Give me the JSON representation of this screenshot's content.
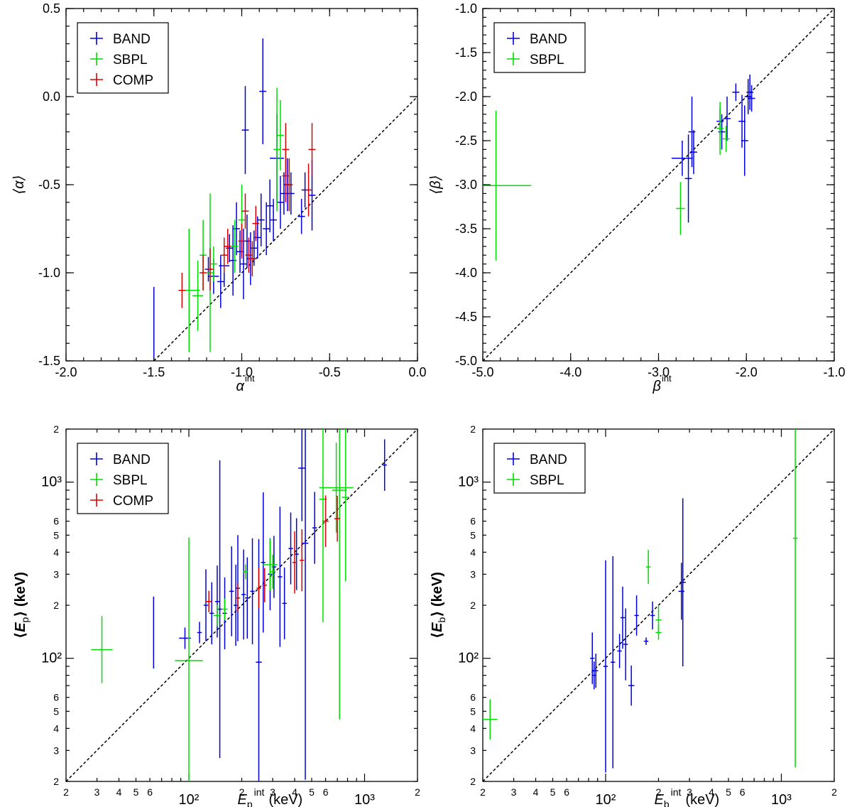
{
  "chart_data": [
    {
      "type": "scatter",
      "id": "alpha",
      "scale": "linear",
      "xlim": [
        -2.0,
        0.0
      ],
      "ylim": [
        -1.5,
        0.5
      ],
      "xticks": [
        -2.0,
        -1.5,
        -1.0,
        -0.5,
        0.0
      ],
      "xtick_labels": [
        "-2.0",
        "-1.5",
        "-1.0",
        "-0.5",
        "0.0"
      ],
      "yticks": [
        -1.5,
        -1.0,
        -0.5,
        0.0,
        0.5
      ],
      "ytick_labels": [
        "-1.5",
        "-1.0",
        "-0.5",
        "0.0",
        "0.5"
      ],
      "xlabel": {
        "sym": "α",
        "sup": "int"
      },
      "ylabel": "⟨α⟩",
      "diagonal": true,
      "legend": [
        "BAND",
        "SBPL",
        "COMP"
      ],
      "colors": {
        "BAND": "#0000dd",
        "SBPL": "#00dd00",
        "COMP": "#dd0000",
        "diagonal": "#000000"
      },
      "series": [
        {
          "name": "BAND",
          "points": [
            [
              -1.5,
              -1.28,
              0.0,
              0.2
            ],
            [
              -1.19,
              -0.98,
              0.02,
              0.07
            ],
            [
              -1.16,
              -1.02,
              0.03,
              0.1
            ],
            [
              -1.12,
              -1.05,
              0.02,
              0.15
            ],
            [
              -1.1,
              -0.96,
              0.03,
              0.12
            ],
            [
              -1.07,
              -0.86,
              0.02,
              0.08
            ],
            [
              -1.05,
              -0.93,
              0.02,
              0.2
            ],
            [
              -1.03,
              -0.75,
              0.02,
              0.15
            ],
            [
              -1.01,
              -0.88,
              0.02,
              0.12
            ],
            [
              -0.99,
              -0.95,
              0.02,
              0.2
            ],
            [
              -0.98,
              -0.19,
              0.02,
              0.25
            ],
            [
              -0.97,
              -0.82,
              0.02,
              0.15
            ],
            [
              -0.95,
              -0.92,
              0.02,
              0.15
            ],
            [
              -0.93,
              -0.86,
              0.02,
              0.1
            ],
            [
              -0.91,
              -0.8,
              0.02,
              0.12
            ],
            [
              -0.89,
              -0.7,
              0.02,
              0.15
            ],
            [
              -0.88,
              0.03,
              0.02,
              0.3
            ],
            [
              -0.86,
              -0.75,
              0.02,
              0.15
            ],
            [
              -0.84,
              -0.62,
              0.02,
              0.15
            ],
            [
              -0.82,
              -0.7,
              0.02,
              0.12
            ],
            [
              -0.8,
              -0.35,
              0.04,
              0.25
            ],
            [
              -0.78,
              -0.6,
              0.02,
              0.15
            ],
            [
              -0.76,
              -0.55,
              0.02,
              0.12
            ],
            [
              -0.74,
              -0.5,
              0.02,
              0.15
            ],
            [
              -0.72,
              -0.55,
              0.02,
              0.12
            ],
            [
              -0.66,
              -0.68,
              0.02,
              0.1
            ],
            [
              -0.64,
              -0.53,
              0.02,
              0.1
            ],
            [
              -0.6,
              -0.56,
              0.02,
              0.2
            ]
          ]
        },
        {
          "name": "SBPL",
          "points": [
            [
              -1.3,
              -1.1,
              0.06,
              0.35
            ],
            [
              -1.25,
              -1.13,
              0.03,
              0.2
            ],
            [
              -1.22,
              -0.9,
              0.02,
              0.2
            ],
            [
              -1.18,
              -1.0,
              0.02,
              0.45
            ],
            [
              -1.16,
              -0.95,
              0.02,
              0.1
            ],
            [
              -1.04,
              -0.85,
              0.02,
              0.15
            ],
            [
              -1.0,
              -0.7,
              0.02,
              0.2
            ],
            [
              -0.8,
              -0.3,
              0.02,
              0.35
            ],
            [
              -0.78,
              -0.22,
              0.02,
              0.2
            ]
          ]
        },
        {
          "name": "COMP",
          "points": [
            [
              -1.34,
              -1.1,
              0.02,
              0.1
            ],
            [
              -1.22,
              -1.0,
              0.02,
              0.1
            ],
            [
              -1.18,
              -0.98,
              0.02,
              0.12
            ],
            [
              -1.1,
              -0.9,
              0.02,
              0.1
            ],
            [
              -1.08,
              -0.85,
              0.02,
              0.1
            ],
            [
              -1.0,
              -0.82,
              0.02,
              0.1
            ],
            [
              -0.98,
              -0.65,
              0.02,
              0.1
            ],
            [
              -0.96,
              -0.9,
              0.02,
              0.1
            ],
            [
              -0.94,
              -0.92,
              0.02,
              0.1
            ],
            [
              -0.92,
              -0.72,
              0.02,
              0.1
            ],
            [
              -0.75,
              -0.45,
              0.02,
              0.15
            ],
            [
              -0.75,
              -0.3,
              0.02,
              0.15
            ],
            [
              -0.73,
              -0.5,
              0.02,
              0.15
            ],
            [
              -0.62,
              -0.53,
              0.02,
              0.15
            ],
            [
              -0.6,
              -0.3,
              0.02,
              0.15
            ]
          ]
        }
      ]
    },
    {
      "type": "scatter",
      "id": "beta",
      "scale": "linear",
      "xlim": [
        -5.0,
        -1.0
      ],
      "ylim": [
        -5.0,
        -1.0
      ],
      "xticks": [
        -5.0,
        -4.0,
        -3.0,
        -2.0,
        -1.0
      ],
      "xtick_labels": [
        "-5.0",
        "-4.0",
        "-3.0",
        "-2.0",
        "-1.0"
      ],
      "yticks": [
        -5.0,
        -4.5,
        -4.0,
        -3.5,
        -3.0,
        -2.5,
        -2.0,
        -1.5,
        -1.0
      ],
      "ytick_labels": [
        "-5.0",
        "-4.5",
        "-4.0",
        "-3.5",
        "-3.0",
        "-2.5",
        "-2.0",
        "-1.5",
        "-1.0"
      ],
      "xlabel": {
        "sym": "β",
        "sup": "int"
      },
      "ylabel": "⟨β⟩",
      "diagonal": true,
      "legend": [
        "BAND",
        "SBPL"
      ],
      "colors": {
        "BAND": "#0000dd",
        "SBPL": "#00dd00",
        "diagonal": "#000000"
      },
      "series": [
        {
          "name": "BAND",
          "points": [
            [
              -2.73,
              -2.7,
              0.12,
              0.2
            ],
            [
              -2.66,
              -2.93,
              0.04,
              0.5
            ],
            [
              -2.62,
              -2.4,
              0.04,
              0.4
            ],
            [
              -2.6,
              -2.63,
              0.04,
              0.25
            ],
            [
              -2.3,
              -2.28,
              0.04,
              0.15
            ],
            [
              -2.28,
              -2.4,
              0.04,
              0.2
            ],
            [
              -2.22,
              -2.25,
              0.04,
              0.25
            ],
            [
              -2.12,
              -1.95,
              0.04,
              0.1
            ],
            [
              -2.05,
              -2.28,
              0.04,
              0.3
            ],
            [
              -2.02,
              -2.5,
              0.04,
              0.4
            ],
            [
              -1.98,
              -2.0,
              0.04,
              0.2
            ],
            [
              -1.96,
              -1.95,
              0.04,
              0.2
            ],
            [
              -1.94,
              -2.02,
              0.04,
              0.15
            ]
          ]
        },
        {
          "name": "SBPL",
          "points": [
            [
              -4.85,
              -3.01,
              0.4,
              0.85
            ],
            [
              -2.75,
              -3.27,
              0.05,
              0.3
            ],
            [
              -2.3,
              -2.36,
              0.04,
              0.3
            ],
            [
              -2.23,
              -2.48,
              0.04,
              0.15
            ]
          ]
        }
      ]
    },
    {
      "type": "scatter",
      "id": "epeak",
      "scale": "log",
      "xlim": [
        20,
        2000
      ],
      "ylim": [
        20,
        2000
      ],
      "major_ticks": [
        100,
        1000
      ],
      "major_tick_labels": [
        "10²",
        "10³"
      ],
      "minor_ticks": [
        20,
        30,
        40,
        50,
        60,
        200,
        300,
        400,
        500,
        600,
        2000
      ],
      "minor_tick_labels": [
        "2",
        "3",
        "4",
        "5",
        "6",
        "2",
        "3",
        "4",
        "5",
        "6",
        "2"
      ],
      "xlabel": {
        "sym": "E",
        "sub": "p",
        "sup": "int",
        "unit": "(keV)"
      },
      "ylabel": {
        "sym": "E",
        "sub": "p",
        "unit": "(keV)"
      },
      "diagonal": true,
      "legend": [
        "BAND",
        "SBPL",
        "COMP"
      ],
      "colors": {
        "BAND": "#0000dd",
        "SBPL": "#00dd00",
        "COMP": "#dd0000",
        "diagonal": "#000000"
      },
      "series": [
        {
          "name": "BAND",
          "points": [
            [
              63,
              140,
              1,
              1.6
            ],
            [
              95,
              130,
              1.08,
              1.15
            ],
            [
              115,
              140,
              1.03,
              1.15
            ],
            [
              125,
              200,
              1.03,
              1.6
            ],
            [
              135,
              180,
              1.03,
              1.5
            ],
            [
              145,
              210,
              1.03,
              1.6
            ],
            [
              150,
              190,
              1.03,
              7
            ],
            [
              160,
              180,
              1.03,
              1.6
            ],
            [
              175,
              240,
              1.03,
              1.8
            ],
            [
              185,
              200,
              1.03,
              1.7
            ],
            [
              190,
              250,
              1.03,
              2
            ],
            [
              205,
              230,
              1.03,
              1.8
            ],
            [
              215,
              220,
              1.03,
              1.7
            ],
            [
              230,
              240,
              1.03,
              2
            ],
            [
              250,
              95,
              1.04,
              5
            ],
            [
              265,
              350,
              1.03,
              2.5
            ],
            [
              290,
              300,
              1.03,
              1.6
            ],
            [
              305,
              330,
              1.03,
              1.5
            ],
            [
              330,
              290,
              1.03,
              2.5
            ],
            [
              350,
              205,
              1.03,
              1.6
            ],
            [
              380,
              420,
              1.03,
              1.6
            ],
            [
              410,
              390,
              1.03,
              1.6
            ],
            [
              440,
              1200,
              1.05,
              2
            ],
            [
              460,
              450,
              1.04,
              22
            ],
            [
              520,
              550,
              1.03,
              1.6
            ],
            [
              1300,
              1250,
              1.03,
              1.4
            ]
          ]
        },
        {
          "name": "SBPL",
          "points": [
            [
              32,
              112,
              1.15,
              1.55
            ],
            [
              100,
              97,
              1.2,
              5
            ],
            [
              145,
              175,
              1.05,
              1.15
            ],
            [
              160,
              190,
              1.04,
              1.15
            ],
            [
              210,
              310,
              1.03,
              1.1
            ],
            [
              290,
              340,
              1.1,
              1.4
            ],
            [
              300,
              310,
              1.04,
              1.25
            ],
            [
              580,
              800,
              1.05,
              5
            ],
            [
              690,
              930,
              1.25,
              1.8
            ],
            [
              720,
              900,
              1.1,
              20
            ],
            [
              780,
              820,
              1.05,
              3
            ]
          ]
        },
        {
          "name": "COMP",
          "points": [
            [
              130,
              210,
              1.04,
              1.15
            ],
            [
              190,
              220,
              1.03,
              1.2
            ],
            [
              250,
              250,
              1.03,
              1.3
            ],
            [
              270,
              260,
              1.03,
              1.25
            ],
            [
              400,
              350,
              1.03,
              1.5
            ],
            [
              440,
              360,
              1.03,
              1.5
            ],
            [
              600,
              600,
              1.04,
              1.4
            ],
            [
              700,
              620,
              1.04,
              1.35
            ]
          ]
        }
      ]
    },
    {
      "type": "scatter",
      "id": "ebreak",
      "scale": "log",
      "xlim": [
        20,
        2000
      ],
      "ylim": [
        20,
        2000
      ],
      "major_ticks": [
        100,
        1000
      ],
      "major_tick_labels": [
        "10²",
        "10³"
      ],
      "minor_ticks": [
        20,
        30,
        40,
        50,
        60,
        200,
        300,
        400,
        500,
        600,
        2000
      ],
      "minor_tick_labels": [
        "2",
        "3",
        "4",
        "5",
        "6",
        "2",
        "3",
        "4",
        "5",
        "6",
        "2"
      ],
      "xlabel": {
        "sym": "E",
        "sub": "b",
        "sup": "int",
        "unit": "(keV)"
      },
      "ylabel": {
        "sym": "E",
        "sub": "b",
        "unit": "(keV)"
      },
      "diagonal": true,
      "legend": [
        "BAND",
        "SBPL"
      ],
      "colors": {
        "BAND": "#0000dd",
        "SBPL": "#00dd00",
        "diagonal": "#000000"
      },
      "series": [
        {
          "name": "BAND",
          "points": [
            [
              84,
              100,
              1.03,
              1.4
            ],
            [
              86,
              80,
              1.03,
              1.2
            ],
            [
              88,
              85,
              1.03,
              1.25
            ],
            [
              100,
              90,
              1.03,
              4
            ],
            [
              110,
              95,
              1.03,
              4
            ],
            [
              120,
              110,
              1.03,
              1.25
            ],
            [
              125,
              170,
              1.03,
              1.5
            ],
            [
              130,
              120,
              1.03,
              1.6
            ],
            [
              140,
              70,
              1.04,
              1.3
            ],
            [
              150,
              175,
              1.03,
              1.3
            ],
            [
              170,
              125,
              1.03,
              1.05
            ],
            [
              185,
              175,
              1.03,
              1.2
            ],
            [
              270,
              240,
              1.04,
              1.45
            ],
            [
              275,
              270,
              1.04,
              3
            ]
          ]
        },
        {
          "name": "SBPL",
          "points": [
            [
              22,
              45,
              1.1,
              1.3
            ],
            [
              175,
              330,
              1.03,
              1.25
            ],
            [
              200,
              140,
              1.04,
              1.1
            ],
            [
              200,
              165,
              1.04,
              1.2
            ],
            [
              1200,
              480,
              1.03,
              20
            ]
          ]
        }
      ]
    }
  ]
}
